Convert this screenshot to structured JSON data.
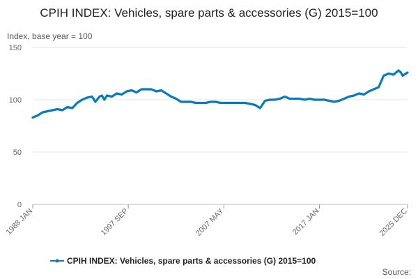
{
  "chart_data": {
    "type": "line",
    "title": "CPIH INDEX: Vehicles, spare parts & accessories (G) 2015=100",
    "ylabel": "Index, base year = 100",
    "xlabel": "",
    "ylim": [
      0,
      150
    ],
    "yticks": [
      0,
      50,
      100,
      150
    ],
    "xlim": [
      "1988 JAN",
      "2025 DEC"
    ],
    "xticks": [
      "1988 JAN",
      "1997 SEP",
      "2007 MAY",
      "2017 JAN",
      "2025 DEC"
    ],
    "grid": true,
    "legend": "bottom-center",
    "series": [
      {
        "name": "CPIH INDEX: Vehicles, spare parts & accessories (G) 2015=100",
        "color": "#0b7bb8",
        "points": [
          [
            "1988 JAN",
            83
          ],
          [
            "1988 JUL",
            85
          ],
          [
            "1989 JAN",
            88
          ],
          [
            "1989 JUL",
            89
          ],
          [
            "1990 JAN",
            90
          ],
          [
            "1990 JUL",
            91
          ],
          [
            "1991 JAN",
            90
          ],
          [
            "1991 JUL",
            93
          ],
          [
            "1992 JAN",
            92
          ],
          [
            "1992 JUL",
            97
          ],
          [
            "1993 JAN",
            100
          ],
          [
            "1993 JUL",
            102
          ],
          [
            "1994 JAN",
            103
          ],
          [
            "1994 MAY",
            98
          ],
          [
            "1994 OCT",
            103
          ],
          [
            "1995 JAN",
            104
          ],
          [
            "1995 APR",
            100
          ],
          [
            "1995 JUL",
            104
          ],
          [
            "1996 JAN",
            103
          ],
          [
            "1996 JUL",
            106
          ],
          [
            "1997 JAN",
            105
          ],
          [
            "1997 JUL",
            108
          ],
          [
            "1998 JAN",
            109
          ],
          [
            "1998 JUL",
            107
          ],
          [
            "1999 JAN",
            110
          ],
          [
            "1999 JUL",
            110
          ],
          [
            "2000 JAN",
            110
          ],
          [
            "2000 JUL",
            108
          ],
          [
            "2001 JAN",
            109
          ],
          [
            "2001 JUL",
            106
          ],
          [
            "2002 JAN",
            103
          ],
          [
            "2002 JUL",
            101
          ],
          [
            "2003 JAN",
            98
          ],
          [
            "2003 JUL",
            98
          ],
          [
            "2004 JAN",
            98
          ],
          [
            "2004 JUL",
            97
          ],
          [
            "2005 JAN",
            97
          ],
          [
            "2005 JUL",
            97
          ],
          [
            "2006 JAN",
            98
          ],
          [
            "2006 JUL",
            98
          ],
          [
            "2007 JAN",
            97
          ],
          [
            "2007 JUL",
            97
          ],
          [
            "2008 JAN",
            97
          ],
          [
            "2008 JUL",
            97
          ],
          [
            "2009 JAN",
            97
          ],
          [
            "2009 JUL",
            97
          ],
          [
            "2010 JAN",
            96
          ],
          [
            "2010 JUL",
            95
          ],
          [
            "2011 JAN",
            92
          ],
          [
            "2011 JUL",
            99
          ],
          [
            "2012 JAN",
            100
          ],
          [
            "2012 JUL",
            100
          ],
          [
            "2013 JAN",
            101
          ],
          [
            "2013 JUL",
            103
          ],
          [
            "2014 JAN",
            101
          ],
          [
            "2014 JUL",
            101
          ],
          [
            "2015 JAN",
            101
          ],
          [
            "2015 JUL",
            100
          ],
          [
            "2016 JAN",
            101
          ],
          [
            "2016 JUL",
            100
          ],
          [
            "2017 JAN",
            100
          ],
          [
            "2017 JUL",
            100
          ],
          [
            "2018 JAN",
            99
          ],
          [
            "2018 JUL",
            98
          ],
          [
            "2019 JAN",
            99
          ],
          [
            "2019 JUL",
            101
          ],
          [
            "2020 JAN",
            103
          ],
          [
            "2020 JUL",
            104
          ],
          [
            "2021 JAN",
            106
          ],
          [
            "2021 JUL",
            105
          ],
          [
            "2022 JAN",
            108
          ],
          [
            "2022 JUL",
            110
          ],
          [
            "2023 JAN",
            112
          ],
          [
            "2023 JUL",
            123
          ],
          [
            "2024 JAN",
            125
          ],
          [
            "2024 JUL",
            124
          ],
          [
            "2025 JAN",
            128
          ],
          [
            "2025 APR",
            126
          ],
          [
            "2025 JUN",
            123
          ],
          [
            "2025 AUG",
            124
          ],
          [
            "2025 OCT",
            125
          ],
          [
            "2025 DEC",
            126
          ]
        ]
      }
    ],
    "source_label": "Source:"
  }
}
